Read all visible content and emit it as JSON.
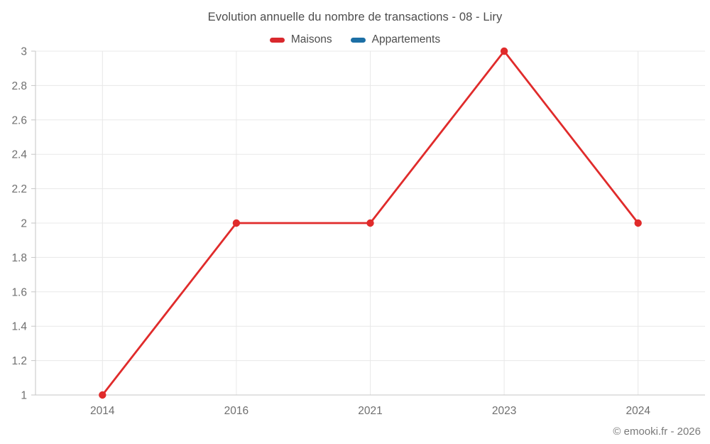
{
  "title": "Evolution annuelle du nombre de transactions - 08 - Liry",
  "legend": [
    {
      "label": "Maisons",
      "color": "#d9282d"
    },
    {
      "label": "Appartements",
      "color": "#1c6fa5"
    }
  ],
  "footer": "© emooki.fr - 2026",
  "colors": {
    "grid": "#e8e8e8",
    "axis": "#c6c6c6",
    "tick_label": "#6f6f6f",
    "line_red": "#e02b2b"
  },
  "chart_data": {
    "type": "line",
    "title": "Evolution annuelle du nombre de transactions - 08 - Liry",
    "categories": [
      "2014",
      "2016",
      "2021",
      "2023",
      "2024"
    ],
    "series": [
      {
        "name": "Maisons",
        "color": "#e02b2b",
        "values": [
          1,
          2,
          2,
          3,
          2
        ]
      },
      {
        "name": "Appartements",
        "color": "#1c6fa5",
        "values": []
      }
    ],
    "xlabel": "",
    "ylabel": "",
    "ylim": [
      1,
      3
    ],
    "ytick_step": 0.2,
    "yticks": [
      1,
      1.2,
      1.4,
      1.6,
      1.8,
      2,
      2.2,
      2.4,
      2.6,
      2.8,
      3
    ],
    "grid": true,
    "legend_position": "top",
    "marker": "circle"
  }
}
